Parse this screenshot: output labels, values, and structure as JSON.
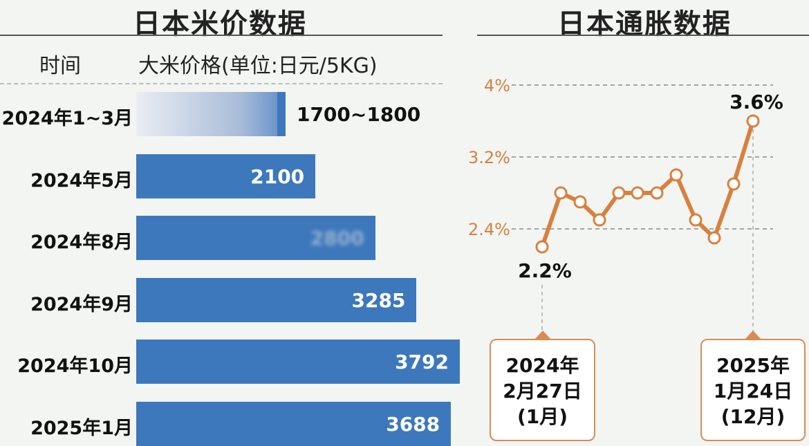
{
  "left_panel": {
    "title": "日本米价数据",
    "header_time": "时间",
    "header_price": "大米价格(单位:日元/5KG)"
  },
  "right_panel": {
    "title": "日本通胀数据",
    "callouts": [
      {
        "line1": "2024年",
        "line2": "2月27日",
        "line3": "(1月)"
      },
      {
        "line1": "2025年",
        "line2": "1月24日",
        "line3": "(12月)"
      }
    ]
  },
  "chart_data": [
    {
      "type": "bar",
      "orientation": "horizontal",
      "title": "日本米价数据",
      "ylabel": "大米价格(单位:日元/5KG)",
      "categories": [
        "2024年1~3月",
        "2024年5月",
        "2024年8月",
        "2024年9月",
        "2024年10月",
        "2025年1月"
      ],
      "values": [
        1750,
        2100,
        2800,
        3285,
        3792,
        3688
      ],
      "value_labels": [
        "1700~1800",
        "2100",
        "2800",
        "3285",
        "3792",
        "3688"
      ],
      "xlim": [
        0,
        3792
      ]
    },
    {
      "type": "line",
      "title": "日本通胀数据",
      "x": [
        1,
        2,
        3,
        4,
        5,
        6,
        7,
        8,
        9,
        10,
        11,
        12
      ],
      "values": [
        2.2,
        2.8,
        2.7,
        2.5,
        2.8,
        2.8,
        2.8,
        3.0,
        2.5,
        2.3,
        2.9,
        3.6
      ],
      "ylim": [
        1.6,
        4.0
      ],
      "yticks": [
        2.4,
        3.2,
        4.0
      ],
      "ytick_labels": [
        "2.4%",
        "3.2%",
        "4%"
      ],
      "point_labels": {
        "first": "2.2%",
        "last": "3.6%"
      },
      "grid": true,
      "colors": {
        "line": "#d9803e",
        "tick": "#d9803e"
      }
    }
  ]
}
